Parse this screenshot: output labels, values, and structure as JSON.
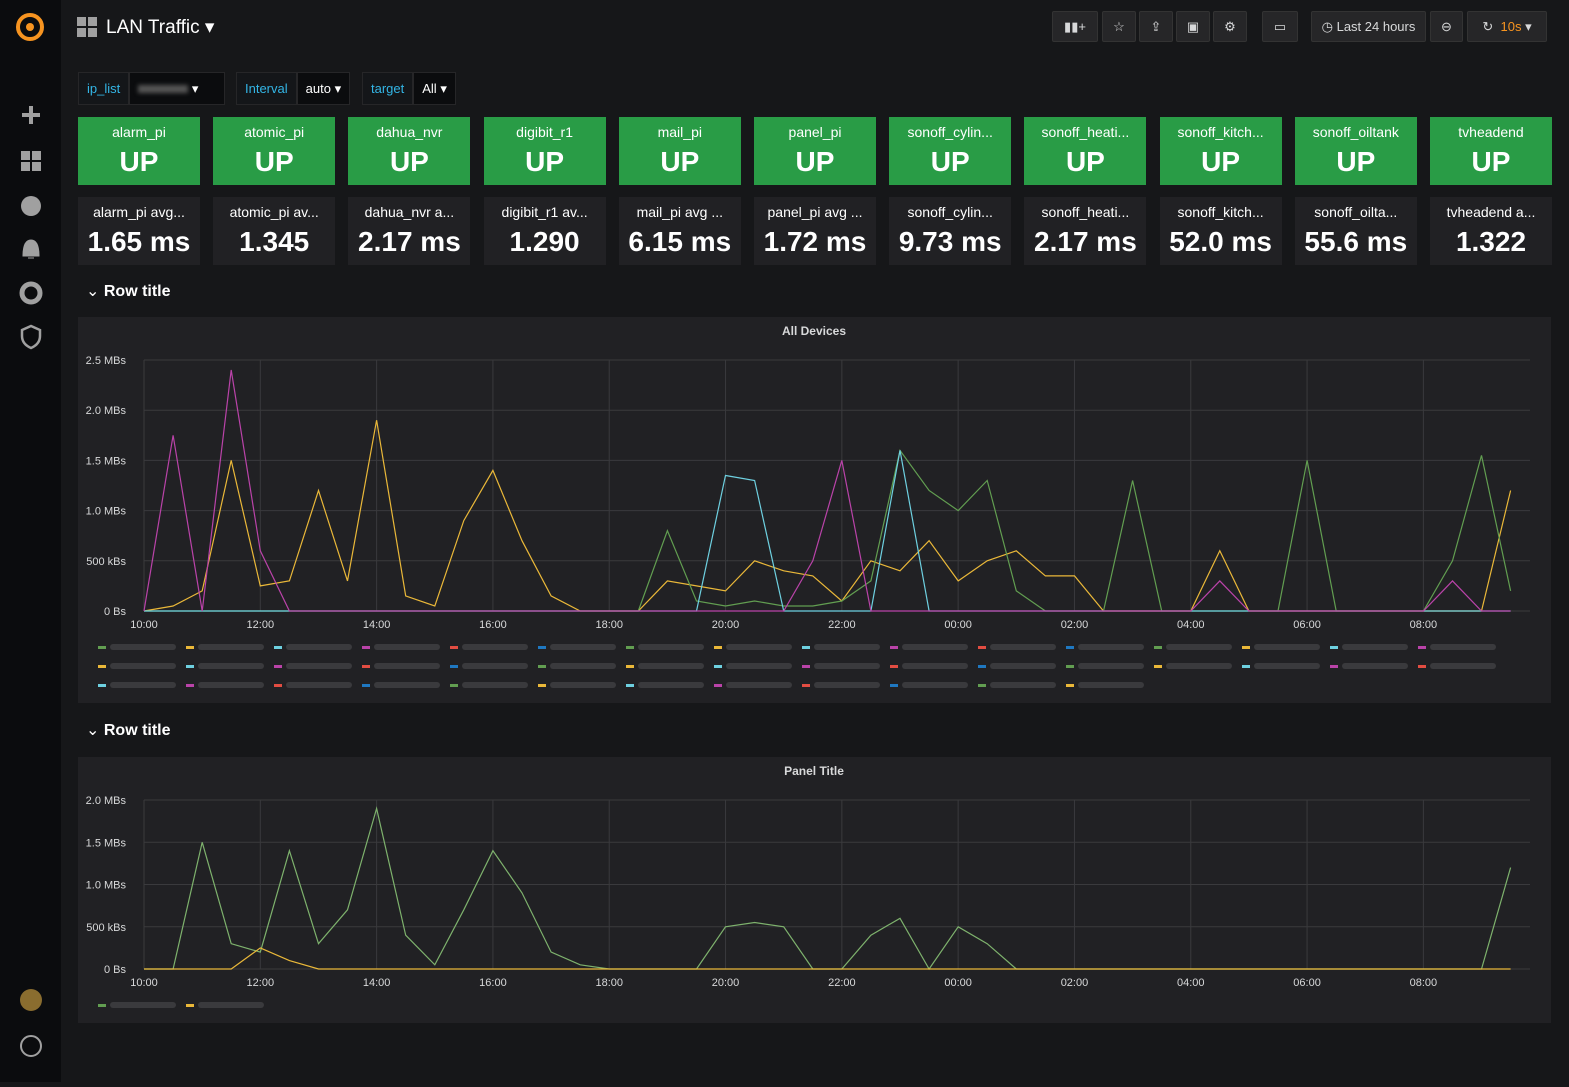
{
  "header": {
    "title": "LAN Traffic",
    "time_range": "Last 24 hours",
    "refresh": "10s"
  },
  "variables": [
    {
      "label": "ip_list"
    },
    {
      "label": "Interval",
      "value": "auto"
    },
    {
      "label": "target",
      "value": "All"
    }
  ],
  "status_panels": [
    {
      "title": "alarm_pi",
      "value": "UP"
    },
    {
      "title": "atomic_pi",
      "value": "UP"
    },
    {
      "title": "dahua_nvr",
      "value": "UP"
    },
    {
      "title": "digibit_r1",
      "value": "UP"
    },
    {
      "title": "mail_pi",
      "value": "UP"
    },
    {
      "title": "panel_pi",
      "value": "UP"
    },
    {
      "title": "sonoff_cylin...",
      "value": "UP"
    },
    {
      "title": "sonoff_heati...",
      "value": "UP"
    },
    {
      "title": "sonoff_kitch...",
      "value": "UP"
    },
    {
      "title": "sonoff_oiltank",
      "value": "UP"
    },
    {
      "title": "tvheadend",
      "value": "UP"
    }
  ],
  "latency_panels": [
    {
      "title": "alarm_pi avg...",
      "value": "1.65 ms"
    },
    {
      "title": "atomic_pi av...",
      "value": "1.345"
    },
    {
      "title": "dahua_nvr a...",
      "value": "2.17 ms"
    },
    {
      "title": "digibit_r1 av...",
      "value": "1.290"
    },
    {
      "title": "mail_pi avg ...",
      "value": "6.15 ms"
    },
    {
      "title": "panel_pi avg ...",
      "value": "1.72 ms"
    },
    {
      "title": "sonoff_cylin...",
      "value": "9.73 ms"
    },
    {
      "title": "sonoff_heati...",
      "value": "2.17 ms"
    },
    {
      "title": "sonoff_kitch...",
      "value": "52.0 ms"
    },
    {
      "title": "sonoff_oilta...",
      "value": "55.6 ms"
    },
    {
      "title": "tvheadend a...",
      "value": "1.322"
    }
  ],
  "rows": [
    {
      "title": "Row title"
    },
    {
      "title": "Row title"
    }
  ],
  "chart_data": [
    {
      "type": "line",
      "title": "All Devices",
      "x": [
        "10:00",
        "10:30",
        "11:00",
        "11:30",
        "12:00",
        "12:30",
        "13:00",
        "13:30",
        "14:00",
        "14:30",
        "15:00",
        "15:30",
        "16:00",
        "16:30",
        "17:00",
        "17:30",
        "18:00",
        "18:30",
        "19:00",
        "19:30",
        "20:00",
        "20:30",
        "21:00",
        "21:30",
        "22:00",
        "22:30",
        "23:00",
        "23:30",
        "00:00",
        "00:30",
        "01:00",
        "01:30",
        "02:00",
        "02:30",
        "03:00",
        "03:30",
        "04:00",
        "04:30",
        "05:00",
        "05:30",
        "06:00",
        "06:30",
        "07:00",
        "07:30",
        "08:00",
        "08:30",
        "09:00",
        "09:30"
      ],
      "series": [
        {
          "color": "#eab839",
          "values": [
            0,
            50000,
            200000,
            1500000,
            250000,
            300000,
            1200000,
            300000,
            1900000,
            150000,
            50000,
            900000,
            1400000,
            700000,
            150000,
            0,
            0,
            0,
            300000,
            250000,
            200000,
            500000,
            400000,
            350000,
            100000,
            500000,
            400000,
            700000,
            300000,
            500000,
            600000,
            350000,
            350000,
            0,
            0,
            0,
            0,
            600000,
            0,
            0,
            0,
            0,
            0,
            0,
            0,
            0,
            0,
            1200000
          ]
        },
        {
          "color": "#629e51",
          "values": [
            0,
            0,
            0,
            0,
            0,
            0,
            0,
            0,
            0,
            0,
            0,
            0,
            0,
            0,
            0,
            0,
            0,
            0,
            800000,
            100000,
            50000,
            100000,
            50000,
            50000,
            100000,
            300000,
            1600000,
            1200000,
            1000000,
            1300000,
            200000,
            0,
            0,
            0,
            1300000,
            0,
            0,
            0,
            0,
            0,
            1500000,
            0,
            0,
            0,
            0,
            500000,
            1550000,
            200000
          ]
        },
        {
          "color": "#6ed0e0",
          "values": [
            0,
            0,
            0,
            0,
            0,
            0,
            0,
            0,
            0,
            0,
            0,
            0,
            0,
            0,
            0,
            0,
            0,
            0,
            0,
            0,
            1350000,
            1300000,
            0,
            0,
            0,
            0,
            1600000,
            0,
            0,
            0,
            0,
            0,
            0,
            0,
            0,
            0,
            0,
            0,
            0,
            0,
            0,
            0,
            0,
            0,
            0,
            0,
            0,
            0
          ]
        },
        {
          "color": "#ba43a9",
          "values": [
            0,
            1750000,
            0,
            2400000,
            600000,
            0,
            0,
            0,
            0,
            0,
            0,
            0,
            0,
            0,
            0,
            0,
            0,
            0,
            0,
            0,
            0,
            0,
            0,
            500000,
            1500000,
            0,
            0,
            0,
            0,
            0,
            0,
            0,
            0,
            0,
            0,
            0,
            0,
            300000,
            0,
            0,
            0,
            0,
            0,
            0,
            0,
            300000,
            0,
            0
          ]
        }
      ],
      "xlim": [
        "10:00",
        "09:50"
      ],
      "xticks": [
        "10:00",
        "12:00",
        "14:00",
        "16:00",
        "18:00",
        "20:00",
        "22:00",
        "00:00",
        "02:00",
        "04:00",
        "06:00",
        "08:00"
      ],
      "ylim": [
        0,
        2500000
      ],
      "yticks": [
        {
          "value": 0,
          "label": "0 Bs"
        },
        {
          "value": 500000,
          "label": "500 kBs"
        },
        {
          "value": 1000000,
          "label": "1.0 MBs"
        },
        {
          "value": 1500000,
          "label": "1.5 MBs"
        },
        {
          "value": 2000000,
          "label": "2.0 MBs"
        },
        {
          "value": 2500000,
          "label": "2.5 MBs"
        }
      ],
      "grid": true
    },
    {
      "type": "line",
      "title": "Panel Title",
      "x": [
        "10:00",
        "10:30",
        "11:00",
        "11:30",
        "12:00",
        "12:30",
        "13:00",
        "13:30",
        "14:00",
        "14:30",
        "15:00",
        "15:30",
        "16:00",
        "16:30",
        "17:00",
        "17:30",
        "18:00",
        "18:30",
        "19:00",
        "19:30",
        "20:00",
        "20:30",
        "21:00",
        "21:30",
        "22:00",
        "22:30",
        "23:00",
        "23:30",
        "00:00",
        "00:30",
        "01:00",
        "01:30",
        "02:00",
        "02:30",
        "03:00",
        "03:30",
        "04:00",
        "04:30",
        "05:00",
        "05:30",
        "06:00",
        "06:30",
        "07:00",
        "07:30",
        "08:00",
        "08:30",
        "09:00",
        "09:30"
      ],
      "series": [
        {
          "color": "#7eb26d",
          "values": [
            0,
            0,
            1500000,
            300000,
            200000,
            1400000,
            300000,
            700000,
            1900000,
            400000,
            50000,
            700000,
            1400000,
            900000,
            200000,
            50000,
            0,
            0,
            0,
            0,
            500000,
            550000,
            500000,
            0,
            0,
            400000,
            600000,
            0,
            500000,
            300000,
            0,
            0,
            0,
            0,
            0,
            0,
            0,
            0,
            0,
            0,
            0,
            0,
            0,
            0,
            0,
            0,
            0,
            1200000
          ]
        },
        {
          "color": "#eab839",
          "values": [
            0,
            0,
            0,
            0,
            250000,
            100000,
            0,
            0,
            0,
            0,
            0,
            0,
            0,
            0,
            0,
            0,
            0,
            0,
            0,
            0,
            0,
            0,
            0,
            0,
            0,
            0,
            0,
            0,
            0,
            0,
            0,
            0,
            0,
            0,
            0,
            0,
            0,
            0,
            0,
            0,
            0,
            0,
            0,
            0,
            0,
            0,
            0,
            0
          ]
        }
      ],
      "xlim": [
        "10:00",
        "09:50"
      ],
      "xticks": [
        "10:00",
        "12:00",
        "14:00",
        "16:00",
        "18:00",
        "20:00",
        "22:00",
        "00:00",
        "02:00",
        "04:00",
        "06:00",
        "08:00"
      ],
      "ylim": [
        0,
        2000000
      ],
      "yticks": [
        {
          "value": 0,
          "label": "0 Bs"
        },
        {
          "value": 500000,
          "label": "500 kBs"
        },
        {
          "value": 1000000,
          "label": "1.0 MBs"
        },
        {
          "value": 1500000,
          "label": "1.5 MBs"
        },
        {
          "value": 2000000,
          "label": "2.0 MBs"
        }
      ],
      "grid": true
    }
  ]
}
